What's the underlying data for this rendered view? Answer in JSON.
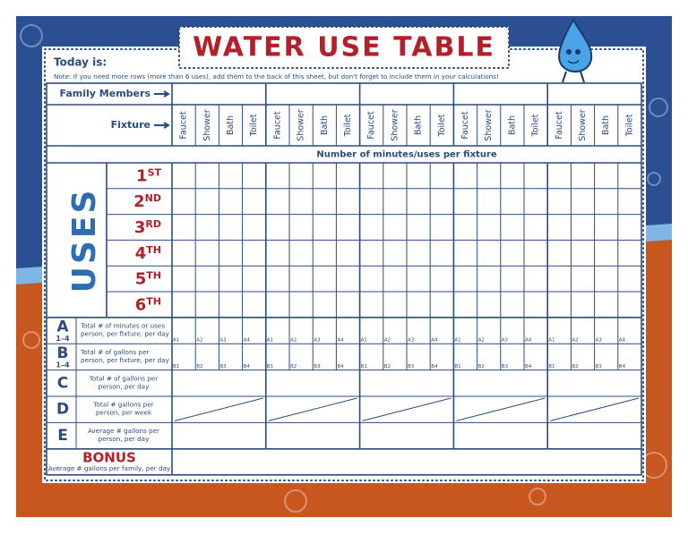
{
  "header": {
    "title": "WATER USE TABLE",
    "today": "Today is:",
    "note": "Note: If you need more rows (more than 6 uses), add them to the back of this sheet, but don't forget to include them in your calculations!"
  },
  "table": {
    "family_members": "Family Members",
    "fixture": "Fixture",
    "fixtures": [
      "Faucet",
      "Shower",
      "Bath",
      "Toilet"
    ],
    "minutes_header": "Number of minutes/uses per fixture",
    "uses_label": "USES",
    "uses": [
      {
        "num": "1",
        "suffix": "ST"
      },
      {
        "num": "2",
        "suffix": "ND"
      },
      {
        "num": "3",
        "suffix": "RD"
      },
      {
        "num": "4",
        "suffix": "TH"
      },
      {
        "num": "5",
        "suffix": "TH"
      },
      {
        "num": "6",
        "suffix": "TH"
      }
    ],
    "summary": [
      {
        "letter": "A",
        "sub": "1–4",
        "lines": [
          "Total # of minutes or uses",
          "person, per fixture, per day"
        ],
        "cell_labels": [
          "A1",
          "A2",
          "A3",
          "A4"
        ]
      },
      {
        "letter": "B",
        "sub": "1–4",
        "lines": [
          "Total # of gallons per",
          "person, per fixture, per day"
        ],
        "cell_labels": [
          "B1",
          "B2",
          "B3",
          "B4"
        ]
      },
      {
        "letter": "C",
        "lines": [
          "Total # of gallons per",
          "person, per day"
        ]
      },
      {
        "letter": "D",
        "lines": [
          "Total # gallons per",
          "person, per week"
        ]
      },
      {
        "letter": "E",
        "lines": [
          "Average # gallons per",
          "person, per day"
        ]
      }
    ],
    "bonus": {
      "title": "BONUS",
      "text": "Average # gallons per family, per day"
    }
  }
}
